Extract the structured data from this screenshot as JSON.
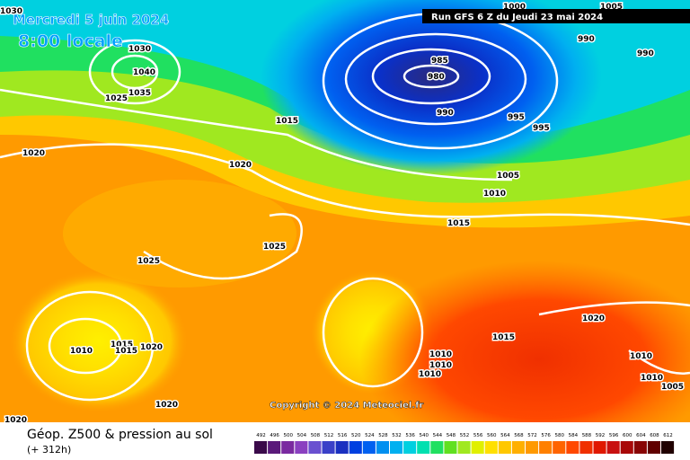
{
  "header": {
    "date": "Mercredi 5 juin 2024",
    "time": "8:00 locale",
    "run": "Run GFS 6 Z du Jeudi 23 mai 2024"
  },
  "isobar_labels": [
    "1030",
    "1030",
    "1040",
    "1035",
    "1025",
    "1015",
    "1020",
    "1020",
    "1025",
    "1025",
    "1010",
    "1015",
    "1015",
    "1020",
    "1020",
    "1020",
    "985",
    "980",
    "990",
    "995",
    "995",
    "990",
    "990",
    "1000",
    "1005",
    "1005",
    "1010",
    "1015",
    "1020",
    "1015",
    "1010",
    "1010",
    "1010",
    "1010",
    "1005",
    "1010"
  ],
  "copyright": "Copyright © 2024 Meteociel.fr",
  "footer": {
    "title": "Géop. Z500 & pression au sol",
    "lead": "(+ 312h)"
  },
  "legend": {
    "values": [
      492,
      496,
      500,
      504,
      508,
      512,
      516,
      520,
      524,
      528,
      532,
      536,
      540,
      544,
      548,
      552,
      556,
      560,
      564,
      568,
      572,
      576,
      580,
      584,
      588,
      592,
      596,
      600,
      604,
      608,
      612
    ],
    "colors": [
      "#3a0a4a",
      "#5a1a7a",
      "#7a2aa0",
      "#8a40c0",
      "#6a50d0",
      "#3a40c8",
      "#1a30c0",
      "#0040e0",
      "#0060f0",
      "#0090f0",
      "#00b0f0",
      "#00d0e0",
      "#00e0b0",
      "#20e060",
      "#60e020",
      "#a0e820",
      "#e0f000",
      "#ffe000",
      "#ffc800",
      "#ffb000",
      "#ff9a00",
      "#ff8000",
      "#ff6400",
      "#ff4800",
      "#f03000",
      "#e01800",
      "#c81010",
      "#a80808",
      "#880404",
      "#600000",
      "#200000"
    ]
  }
}
